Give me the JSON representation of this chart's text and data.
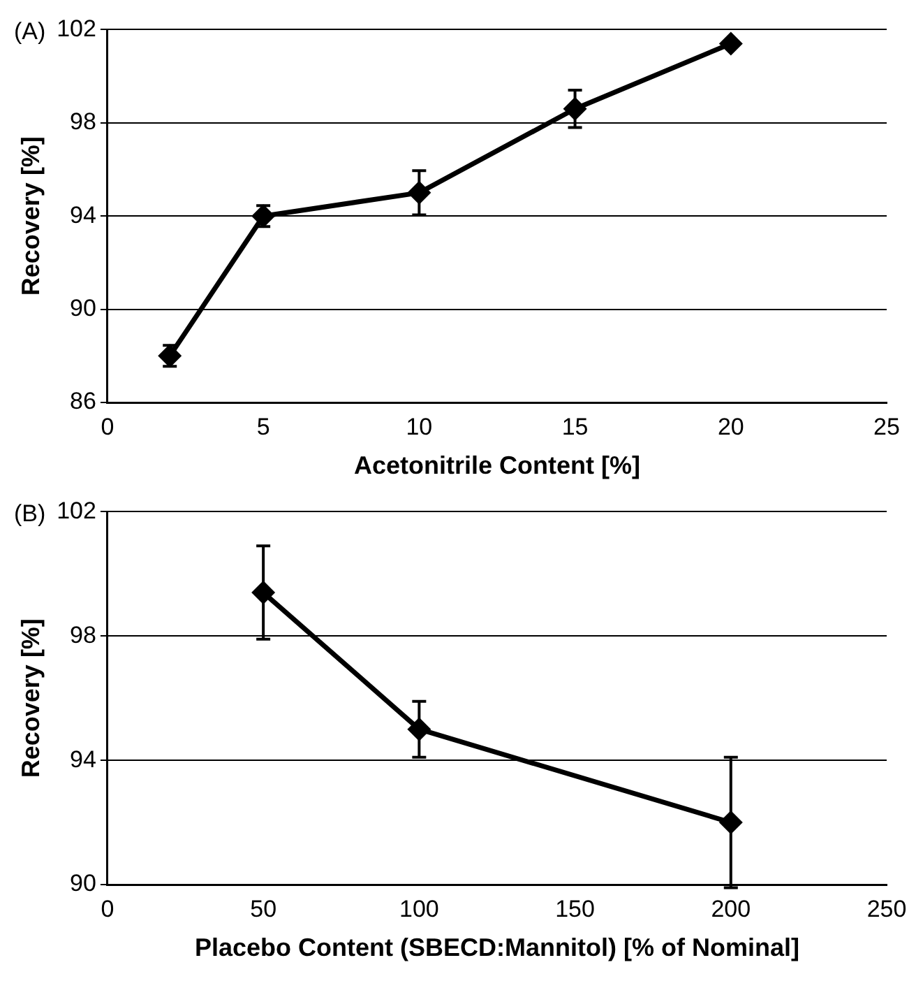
{
  "chart_data": [
    {
      "type": "line",
      "title": "(A)",
      "xlabel": "Acetonitrile Content [%]",
      "ylabel": "Recovery [%]",
      "x": [
        2,
        5,
        10,
        15,
        20
      ],
      "series": [
        {
          "color": "#000000",
          "values": [
            88.0,
            94.0,
            95.0,
            98.6,
            101.4
          ],
          "errors": [
            0.45,
            0.45,
            0.95,
            0.8,
            null
          ]
        }
      ],
      "xlim": [
        0,
        25
      ],
      "xticks": [
        0,
        5,
        10,
        15,
        20,
        25
      ],
      "ylim": [
        86,
        102
      ],
      "yticks": [
        86,
        90,
        94,
        98,
        102
      ],
      "grid": "y",
      "legend": false,
      "marker": "diamond",
      "line_style": "solid"
    },
    {
      "type": "line",
      "title": "(B)",
      "xlabel": "Placebo Content (SBECD:Mannitol) [% of Nominal]",
      "ylabel": "Recovery [%]",
      "x": [
        50,
        100,
        200
      ],
      "series": [
        {
          "color": "#000000",
          "values": [
            99.4,
            95.0,
            92.0
          ],
          "errors": [
            1.5,
            0.9,
            2.1
          ]
        }
      ],
      "xlim": [
        0,
        250
      ],
      "xticks": [
        0,
        50,
        100,
        150,
        200,
        250
      ],
      "ylim": [
        90,
        102
      ],
      "yticks": [
        90,
        94,
        98,
        102
      ],
      "grid": "y",
      "legend": false,
      "marker": "diamond",
      "line_style": "solid"
    }
  ]
}
